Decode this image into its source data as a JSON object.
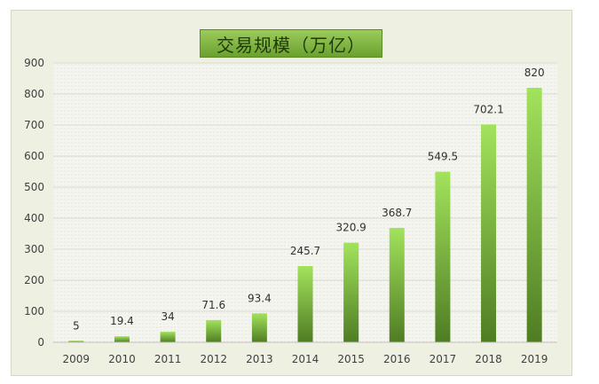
{
  "chart_data": {
    "type": "bar",
    "title": "交易规模（万亿）",
    "categories": [
      "2009",
      "2010",
      "2011",
      "2012",
      "2013",
      "2014",
      "2015",
      "2016",
      "2017",
      "2018",
      "2019"
    ],
    "values": [
      5,
      19.4,
      34,
      71.6,
      93.4,
      245.7,
      320.9,
      368.7,
      549.5,
      702.1,
      820
    ],
    "value_labels": [
      "5",
      "19.4",
      "34",
      "71.6",
      "93.4",
      "245.7",
      "320.9",
      "368.7",
      "549.5",
      "702.1",
      "820"
    ],
    "ylim": [
      0,
      900
    ],
    "yticks": [
      "0",
      "100",
      "200",
      "300",
      "400",
      "500",
      "600",
      "700",
      "800",
      "900"
    ],
    "grid": true,
    "legend": "none",
    "colors": {
      "bar_top": "#9fe05a",
      "bar_bottom": "#4d7a22",
      "grid": "#d9dbd0",
      "background": "#eef0e2"
    }
  }
}
